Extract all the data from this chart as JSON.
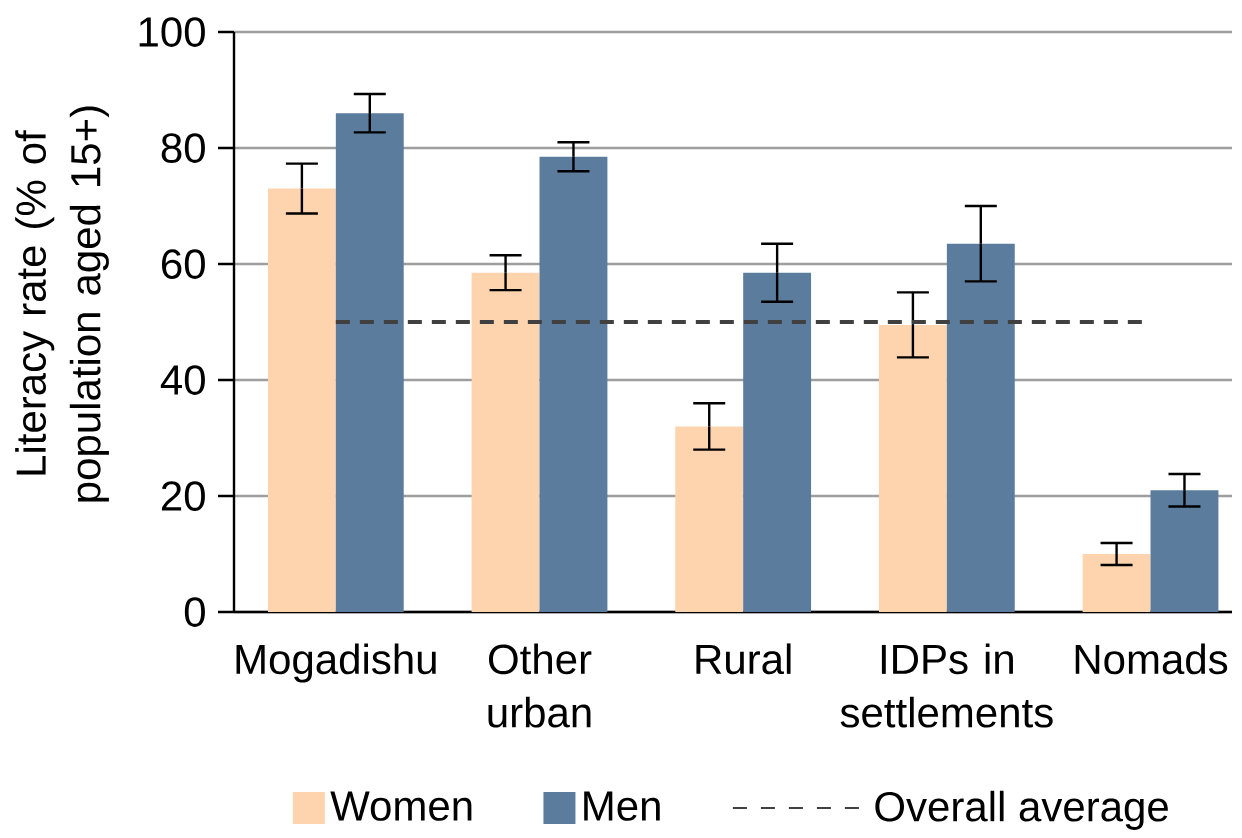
{
  "chart_data": {
    "type": "bar",
    "ylabel": "Literacy rate (% of population aged 15+)",
    "categories": [
      "Mogadishu",
      "Other urban",
      "Rural",
      "IDPs in settlements",
      "Nomads"
    ],
    "series": [
      {
        "name": "Women",
        "color": "#fdd4ae",
        "values": [
          73,
          58.5,
          32,
          49.5,
          10
        ],
        "errors": [
          4.3,
          3,
          4,
          5.6,
          1.9
        ]
      },
      {
        "name": "Men",
        "color": "#5b7c9d",
        "values": [
          86,
          78.5,
          58.5,
          63.5,
          21
        ],
        "errors": [
          3.3,
          2.5,
          5,
          6.5,
          2.8
        ]
      }
    ],
    "ylim": [
      0,
      100
    ],
    "yticks": [
      0,
      20,
      40,
      60,
      80,
      100
    ],
    "grid": "y",
    "legend": "bottom",
    "ref_lines": [
      {
        "axis": "y",
        "value": 50,
        "label": "Overall average",
        "color": "#404040",
        "line_style": "dashed"
      }
    ]
  }
}
